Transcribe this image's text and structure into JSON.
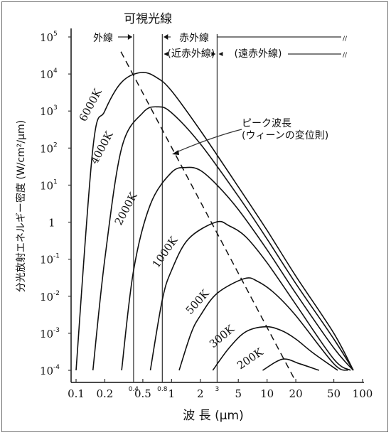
{
  "chart_data": {
    "type": "line",
    "xlabel": "波 長 (μm)",
    "ylabel": "分光放射エネルギー密度 (W/cm²/μm)",
    "x_scale": "log",
    "y_scale": "log",
    "xlim": [
      0.08,
      100
    ],
    "ylim": [
      5e-05,
      100000
    ],
    "x_ticks": [
      {
        "v": 0.1,
        "label": "0.1"
      },
      {
        "v": 0.2,
        "label": "0.2"
      },
      {
        "v": 0.5,
        "label": "0.5"
      },
      {
        "v": 1,
        "label": "1"
      },
      {
        "v": 2,
        "label": "2"
      },
      {
        "v": 5,
        "label": "5"
      },
      {
        "v": 10,
        "label": "10"
      },
      {
        "v": 20,
        "label": "20"
      },
      {
        "v": 50,
        "label": "50"
      },
      {
        "v": 100,
        "label": "100"
      }
    ],
    "y_ticks": [
      {
        "v": 100000,
        "base": "10",
        "exp": "5"
      },
      {
        "v": 10000,
        "base": "10",
        "exp": "4"
      },
      {
        "v": 1000,
        "base": "10",
        "exp": "3"
      },
      {
        "v": 100,
        "base": "10",
        "exp": "2"
      },
      {
        "v": 10,
        "base": "10",
        "exp": "1"
      },
      {
        "v": 1,
        "base": "1",
        "exp": ""
      },
      {
        "v": 0.1,
        "base": "10",
        "exp": "-1"
      },
      {
        "v": 0.01,
        "base": "10",
        "exp": "-2"
      },
      {
        "v": 0.001,
        "base": "10",
        "exp": "-3"
      },
      {
        "v": 0.0001,
        "base": "10",
        "exp": "-4"
      }
    ],
    "band_marks": [
      {
        "x": 0.4,
        "label": "0.4"
      },
      {
        "x": 0.8,
        "label": "0.8"
      },
      {
        "x": 3,
        "label": "3"
      }
    ],
    "series": [
      {
        "name": "6000K",
        "peak": [
          0.48,
          11000
        ],
        "points": [
          [
            0.1,
            0.0001
          ],
          [
            0.15,
            100
          ],
          [
            0.2,
            1000
          ],
          [
            0.3,
            6000
          ],
          [
            0.48,
            11000
          ],
          [
            0.7,
            8000
          ],
          [
            1,
            3500
          ],
          [
            2,
            300
          ],
          [
            5,
            9
          ],
          [
            10,
            0.6
          ],
          [
            20,
            0.035
          ],
          [
            50,
            0.001
          ],
          [
            80,
            0.0001
          ]
        ]
      },
      {
        "name": "4000K",
        "peak": [
          0.72,
          1300
        ],
        "points": [
          [
            0.15,
            0.0001
          ],
          [
            0.2,
            0.1
          ],
          [
            0.3,
            100
          ],
          [
            0.5,
            900
          ],
          [
            0.72,
            1300
          ],
          [
            1,
            900
          ],
          [
            2,
            130
          ],
          [
            5,
            5
          ],
          [
            10,
            0.35
          ],
          [
            20,
            0.022
          ],
          [
            50,
            0.0007
          ],
          [
            80,
            0.0001
          ]
        ]
      },
      {
        "name": "2000K",
        "peak": [
          1.45,
          30
        ],
        "points": [
          [
            0.3,
            0.0001
          ],
          [
            0.4,
            0.05
          ],
          [
            0.6,
            3
          ],
          [
            1,
            22
          ],
          [
            1.45,
            30
          ],
          [
            2,
            25
          ],
          [
            3,
            10
          ],
          [
            5,
            2.2
          ],
          [
            10,
            0.18
          ],
          [
            20,
            0.012
          ],
          [
            50,
            0.0004
          ],
          [
            80,
            0.0001
          ]
        ]
      },
      {
        "name": "1000K",
        "peak": [
          2.9,
          1
        ],
        "points": [
          [
            0.6,
            0.0001
          ],
          [
            0.8,
            0.008
          ],
          [
            1,
            0.05
          ],
          [
            1.5,
            0.35
          ],
          [
            2.9,
            1
          ],
          [
            4,
            0.8
          ],
          [
            6,
            0.4
          ],
          [
            10,
            0.08
          ],
          [
            20,
            0.006
          ],
          [
            50,
            0.0002
          ],
          [
            75,
            0.0001
          ]
        ]
      },
      {
        "name": "500K",
        "peak": [
          5.8,
          0.03
        ],
        "points": [
          [
            1.2,
            0.0001
          ],
          [
            1.6,
            0.001
          ],
          [
            2,
            0.003
          ],
          [
            3,
            0.012
          ],
          [
            5.8,
            0.03
          ],
          [
            8,
            0.025
          ],
          [
            12,
            0.012
          ],
          [
            20,
            0.003
          ],
          [
            50,
            0.00015
          ],
          [
            70,
            0.0001
          ]
        ]
      },
      {
        "name": "300K",
        "peak": [
          9.7,
          0.0015
        ],
        "points": [
          [
            2.7,
            0.0001
          ],
          [
            4,
            0.0004
          ],
          [
            6,
            0.0011
          ],
          [
            9.7,
            0.0015
          ],
          [
            14,
            0.0012
          ],
          [
            20,
            0.0007
          ],
          [
            30,
            0.0003
          ],
          [
            55,
            0.0001
          ]
        ]
      },
      {
        "name": "200K",
        "peak": [
          14.5,
          0.0002
        ],
        "points": [
          [
            9,
            0.0001
          ],
          [
            14.5,
            0.0002
          ],
          [
            22,
            0.00015
          ],
          [
            35,
            0.0001
          ]
        ]
      }
    ],
    "wien_line": [
      [
        0.35,
        40000
      ],
      [
        18,
        5e-05
      ]
    ],
    "regions": {
      "visible": "可視光線",
      "uv": "外線",
      "ir": "赤外線",
      "near_ir": "(近赤外線)",
      "far_ir": "(遠赤外線)"
    },
    "annotation": {
      "line1": "ピーク波長",
      "line2": "(ウィーンの変位則)"
    }
  }
}
